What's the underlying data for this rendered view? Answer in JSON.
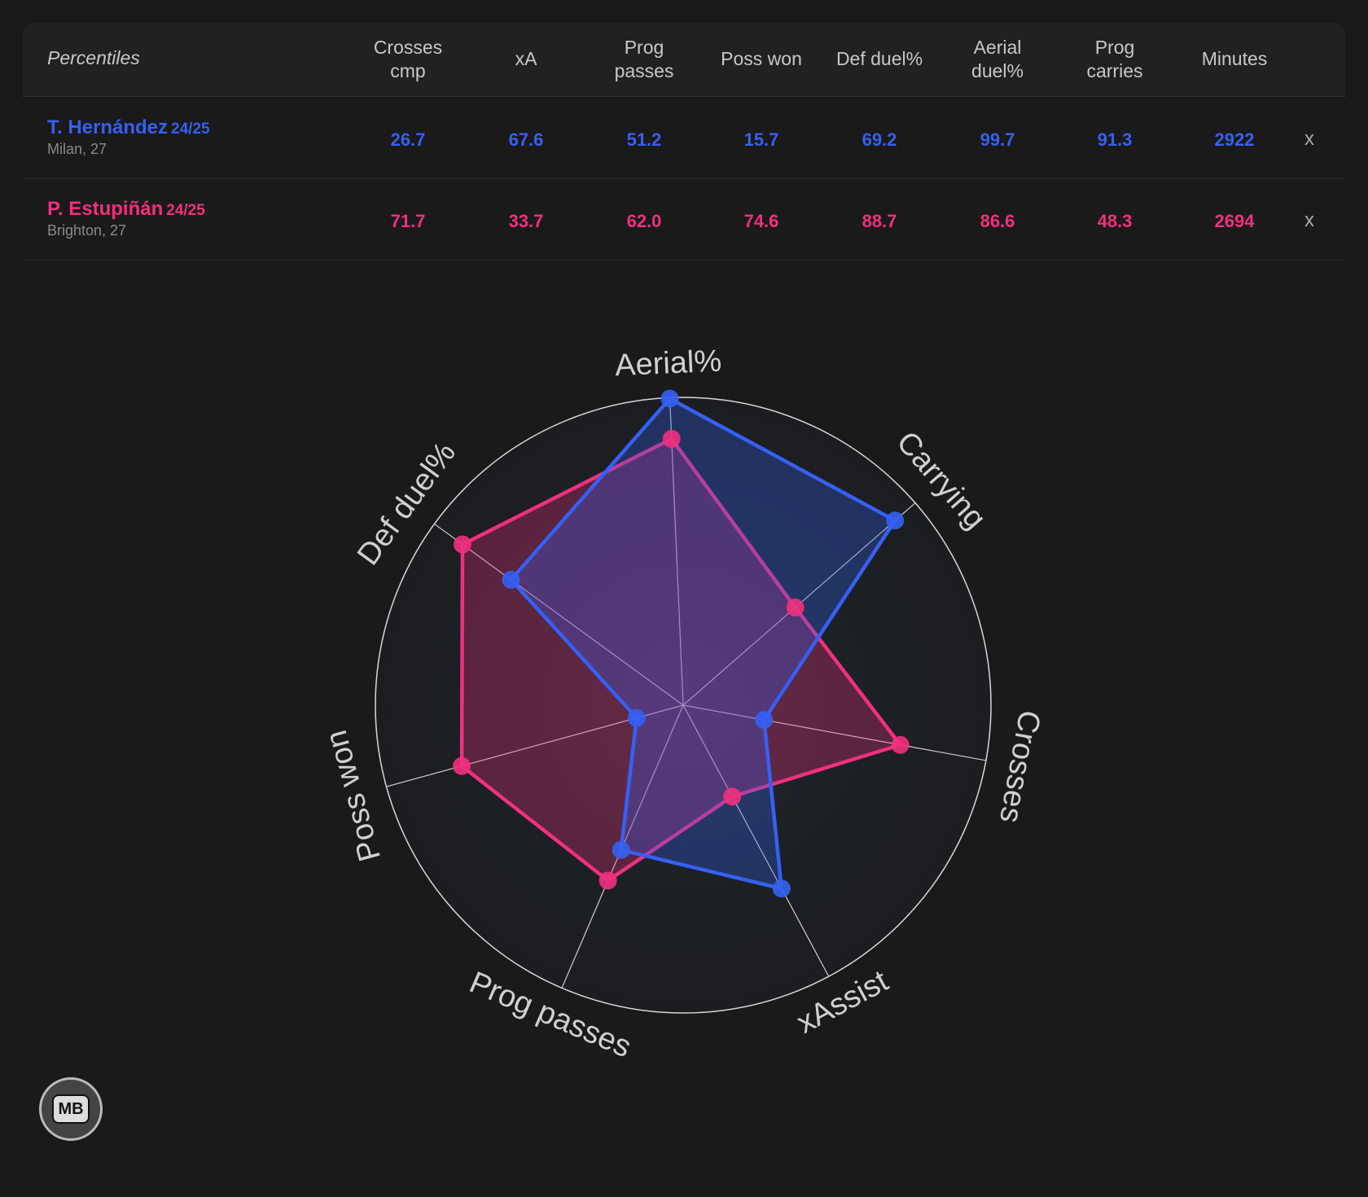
{
  "table": {
    "header": "Percentiles",
    "columns": [
      [
        "Crosses",
        "cmp"
      ],
      [
        "xA"
      ],
      [
        "Prog",
        "passes"
      ],
      [
        "Poss won"
      ],
      [
        "Def duel%"
      ],
      [
        "Aerial",
        "duel%"
      ],
      [
        "Prog",
        "carries"
      ],
      [
        "Minutes"
      ]
    ],
    "remove": "x"
  },
  "logo": "MB",
  "chart_data": {
    "type": "radar",
    "categories": [
      "Aerial%",
      "Carrying",
      "Crosses",
      "xAssist",
      "Prog passes",
      "Poss won",
      "Def duel%"
    ],
    "rlim": [
      0,
      100
    ],
    "series": [
      {
        "name": "T. Hernández",
        "season": "24/25",
        "team": "Milan, 27",
        "color": "#3560f2",
        "values": [
          99.7,
          91.3,
          26.7,
          67.6,
          51.2,
          15.7,
          69.2
        ],
        "value_labels": [
          "99.7",
          "91.3",
          "26.7",
          "67.6",
          "51.2",
          "15.7",
          "69.2"
        ],
        "minutes": 2922
      },
      {
        "name": "P. Estupiñán",
        "season": "24/25",
        "team": "Brighton, 27",
        "color": "#f0307e",
        "values": [
          86.6,
          48.3,
          71.7,
          33.7,
          62.0,
          74.6,
          88.7
        ],
        "value_labels": [
          "86.6",
          "48.3",
          "71.7",
          "33.7",
          "62.0",
          "74.6",
          "88.7"
        ],
        "minutes": 2694
      }
    ]
  }
}
